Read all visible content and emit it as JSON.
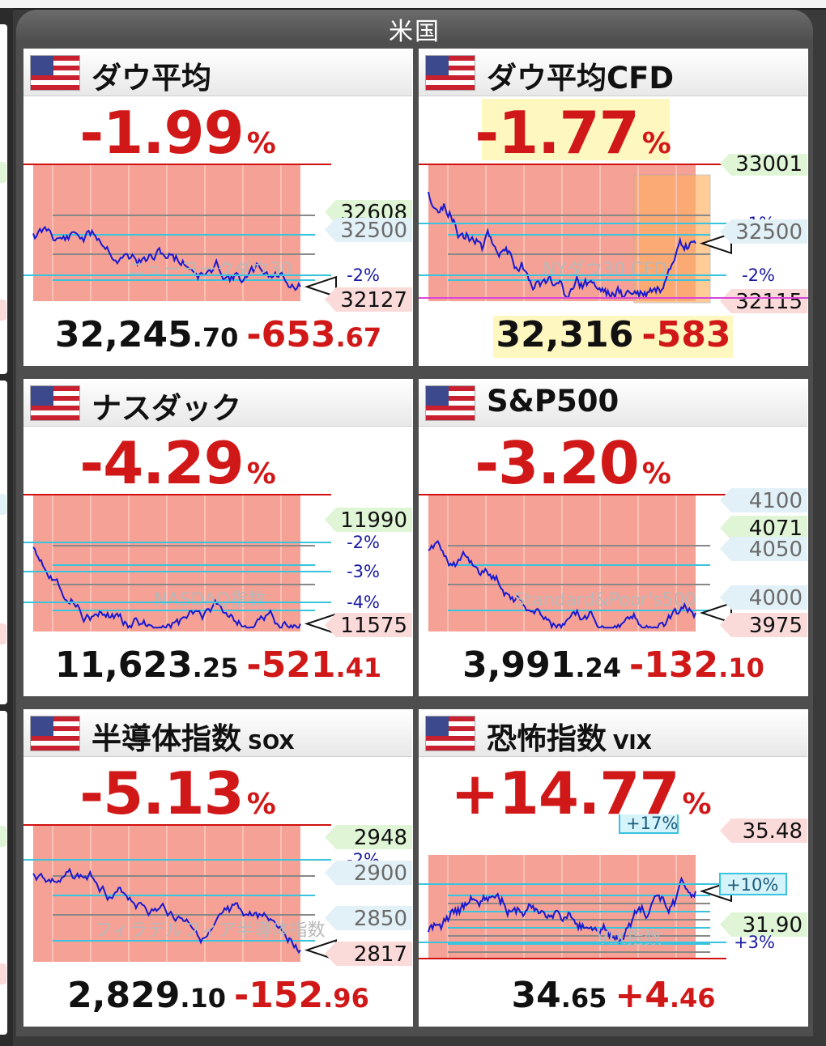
{
  "region_title": "米国",
  "colors": {
    "down": "#d11818",
    "shade": "#f6a195",
    "line": "#1a1ad0",
    "cyan": "#39c3dd",
    "green_tag": "#dff5d6",
    "red_tag": "#fbdada",
    "blue_tag": "#e2f1f7",
    "redline": "#d01010"
  },
  "panels": [
    {
      "name": "ダウ平均",
      "sub": "",
      "pct": "-1.99",
      "pct_unit": "%",
      "value_int": "32,245",
      "value_dec": ".70",
      "chg_int": "-653",
      "chg_dec": ".67",
      "watermark": "ニューヨークダウ30",
      "tags": [
        {
          "text": "32608",
          "type": "green",
          "ypos": 0.36
        },
        {
          "text": "32500",
          "type": "blue",
          "ypos": 0.47
        },
        {
          "text": "-2%",
          "type": "level",
          "ypos": 0.75
        },
        {
          "text": "32127",
          "type": "red",
          "ypos": 0.9
        }
      ]
    },
    {
      "name": "ダウ平均CFD",
      "sub": "",
      "pct": "-1.77",
      "pct_unit": "%",
      "value_int": "32,316",
      "value_dec": "",
      "chg_int": "-583",
      "chg_dec": "",
      "watermark": "NYダウ30 CFD",
      "tags": [
        {
          "text": "33001",
          "type": "green",
          "ypos": 0.06
        },
        {
          "text": "-1%",
          "type": "level",
          "ypos": 0.43
        },
        {
          "text": "32500",
          "type": "blue",
          "ypos": 0.48
        },
        {
          "text": "-2%",
          "type": "level",
          "ypos": 0.75
        },
        {
          "text": "32115",
          "type": "red",
          "ypos": 0.91
        }
      ]
    },
    {
      "name": "ナスダック",
      "sub": "",
      "pct": "-4.29",
      "pct_unit": "%",
      "value_int": "11,623",
      "value_dec": ".25",
      "chg_int": "-521",
      "chg_dec": ".41",
      "watermark": "NASDAQ指数",
      "tags": [
        {
          "text": "11990",
          "type": "green",
          "ypos": 0.22
        },
        {
          "text": "-2%",
          "type": "level",
          "ypos": 0.36
        },
        {
          "text": "-3%",
          "type": "level",
          "ypos": 0.54
        },
        {
          "text": "-4%",
          "type": "level",
          "ypos": 0.73
        },
        {
          "text": "11575",
          "type": "red",
          "ypos": 0.87
        }
      ]
    },
    {
      "name": "S&P500",
      "sub": "",
      "pct": "-3.20",
      "pct_unit": "%",
      "value_int": "3,991",
      "value_dec": ".24",
      "chg_int": "-132",
      "chg_dec": ".10",
      "watermark": "Standard&Poor's500",
      "tags": [
        {
          "text": "4100",
          "type": "blue",
          "ypos": 0.1
        },
        {
          "text": "4071",
          "type": "green",
          "ypos": 0.27
        },
        {
          "text": "4050",
          "type": "blue",
          "ypos": 0.4
        },
        {
          "text": "4000",
          "type": "blue",
          "ypos": 0.7
        },
        {
          "text": "3975",
          "type": "red",
          "ypos": 0.87
        }
      ]
    },
    {
      "name": "半導体指数",
      "sub": "SOX",
      "pct": "-5.13",
      "pct_unit": "%",
      "value_int": "2,829",
      "value_dec": ".10",
      "chg_int": "-152",
      "chg_dec": ".96",
      "watermark": "フィラデルフィア半導体指数",
      "tags": [
        {
          "text": "2948",
          "type": "green",
          "ypos": 0.14
        },
        {
          "text": "-2%",
          "type": "level",
          "ypos": 0.28
        },
        {
          "text": "2900",
          "type": "blue",
          "ypos": 0.36
        },
        {
          "text": "2850",
          "type": "blue",
          "ypos": 0.64
        },
        {
          "text": "2817",
          "type": "red",
          "ypos": 0.86
        }
      ]
    },
    {
      "name": "恐怖指数",
      "sub": "VIX",
      "pct": "+14.77",
      "pct_unit": "%",
      "value_int": "34",
      "value_dec": ".65",
      "chg_int": "+4",
      "chg_dec": ".46",
      "watermark": "VIX指数",
      "tags": [
        {
          "text": "35.48",
          "type": "red",
          "ypos": 0.1
        },
        {
          "text": "+10%",
          "type": "cyanbox",
          "ypos": 0.43
        },
        {
          "text": "31.90",
          "type": "green",
          "ypos": 0.68
        },
        {
          "text": "+3%",
          "type": "level",
          "ypos": 0.79
        },
        {
          "text": "+17%",
          "type": "cyanbox2",
          "ypos": 0.05
        }
      ]
    }
  ]
}
